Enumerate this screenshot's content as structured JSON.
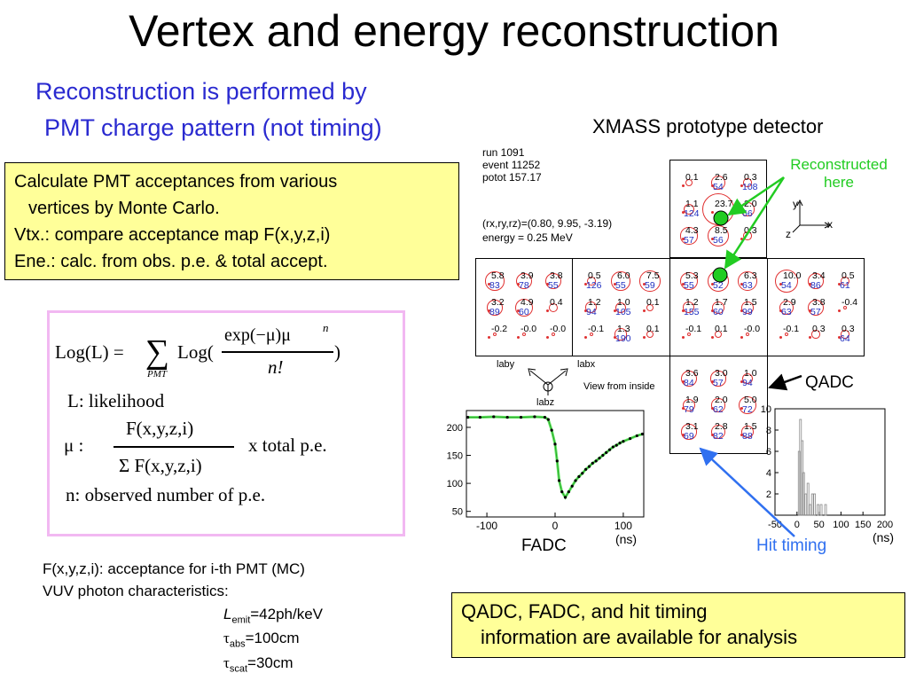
{
  "title": "Vertex and energy reconstruction",
  "subtitle": {
    "line1": "Reconstruction is performed by",
    "line2": "PMT charge pattern (not timing)"
  },
  "calc_box": {
    "lines": [
      "Calculate PMT acceptances from various",
      "vertices by Monte Carlo.",
      "Vtx.: compare acceptance map F(x,y,z,i)",
      "Ene.: calc. from obs. p.e. & total accept."
    ]
  },
  "formula": {
    "lhs": "Log(L) =",
    "sum_sub": "PMT",
    "log_open": "Log(",
    "numerator": "exp(−μ)μ",
    "numerator_sup": "n",
    "denominator": "n!",
    "log_close": ")",
    "l_def": "L: likelihood",
    "mu_label": "μ :",
    "mu_num": "F(x,y,z,i)",
    "mu_den": "Σ F(x,y,z,i)",
    "mu_suffix": "x total p.e.",
    "n_def": "n: observed number of p.e."
  },
  "notes": {
    "line1": "F(x,y,z,i): acceptance for i-th PMT (MC)",
    "line2": "VUV photon characteristics:",
    "lemit_sym": "L",
    "lemit_sub": "emit",
    "lemit_val": "=42ph/keV",
    "tau_abs_sym": "τ",
    "tau_abs_sub": "abs",
    "tau_abs_val": "=100cm",
    "tau_scat_sym": "τ",
    "tau_scat_sub": "scat",
    "tau_scat_val": "=30cm"
  },
  "detector": {
    "heading": "XMASS prototype detector",
    "run_info": [
      "run 1091",
      "event 11252",
      "potot 157.17"
    ],
    "vertex_info": [
      "(rx,ry,rz)=(0.80, 9.95, -3.19)",
      "energy = 0.25 MeV"
    ],
    "axes": {
      "y": "y",
      "x": "x",
      "z": "z"
    },
    "view_labels": {
      "laby": "laby",
      "labx": "labx",
      "labz": "labz",
      "view": "View from inside"
    },
    "faces": {
      "top": [
        [
          "0.1",
          "2.6",
          "0.3"
        ],
        [
          "1.1",
          "23.7",
          "2.0"
        ],
        [
          "4.3",
          "8.5",
          "0.3"
        ]
      ],
      "top_blue": [
        [
          "",
          "54",
          "108"
        ],
        [
          "124",
          "",
          "66"
        ],
        [
          "57",
          "56",
          ""
        ]
      ],
      "left": [
        [
          "5.8",
          "3.9",
          "3.8"
        ],
        [
          "3.2",
          "4.9",
          "0.4"
        ],
        [
          "-0.2",
          "-0.0",
          "-0.0"
        ]
      ],
      "left_blue": [
        [
          "83",
          "78",
          "55"
        ],
        [
          "89",
          "60",
          ""
        ],
        [
          "",
          "",
          ""
        ]
      ],
      "front": [
        [
          "0.5",
          "6.0",
          "7.5"
        ],
        [
          "1.2",
          "1.0",
          "0.1"
        ],
        [
          "-0.1",
          "1.3",
          "0.1"
        ]
      ],
      "front_blue": [
        [
          "126",
          "55",
          "59"
        ],
        [
          "94",
          "105",
          ""
        ],
        [
          "",
          "190",
          ""
        ]
      ],
      "center": [
        [
          "5.3",
          "8.5",
          "6.3"
        ],
        [
          "1.2",
          "1.7",
          "1.5"
        ],
        [
          "-0.1",
          "0.1",
          "-0.0"
        ]
      ],
      "center_blue": [
        [
          "55",
          "52",
          "63"
        ],
        [
          "155",
          "60",
          "99"
        ],
        [
          "",
          "",
          ""
        ]
      ],
      "right": [
        [
          "10.0",
          "3.4",
          "0.5"
        ],
        [
          "2.9",
          "3.8",
          "-0.4"
        ],
        [
          "-0.1",
          "0.3",
          "0.3"
        ]
      ],
      "right_blue": [
        [
          "54",
          "86",
          "61"
        ],
        [
          "63",
          "57",
          ""
        ],
        [
          "",
          "",
          "64"
        ]
      ],
      "bottom": [
        [
          "3.6",
          "3.0",
          "1.0"
        ],
        [
          "1.9",
          "2.0",
          "5.0"
        ],
        [
          "3.1",
          "2.8",
          "1.5"
        ]
      ],
      "bottom_blue": [
        [
          "84",
          "57",
          "94"
        ],
        [
          "79",
          "62",
          "72"
        ],
        [
          "69",
          "82",
          "88"
        ]
      ]
    }
  },
  "annotations": {
    "reconstructed": "Reconstructed",
    "here": "here",
    "qadc": "QADC",
    "fadc": "FADC",
    "hit_timing": "Hit timing"
  },
  "qadc_box": {
    "line1": "QADC, FADC, and hit timing",
    "line2": "information are available for analysis"
  },
  "colors": {
    "title_blue": "#2a2ad0",
    "highlight_yellow": "#ffff99",
    "formula_border": "#f2b8f2",
    "pmt_circle_red": "#e03030",
    "pmt_value_blue": "#2030c0",
    "marker_green": "#22cc22",
    "fadc_line_green": "#33dd33",
    "arrow_green": "#22cc22",
    "arrow_blue": "#3070f0"
  },
  "chart_data": [
    {
      "type": "line",
      "title": "",
      "xlabel": "(ns)",
      "ylabel": "",
      "xlim": [
        -130,
        130
      ],
      "ylim": [
        40,
        230
      ],
      "xticks": [
        "-100",
        "0",
        "100"
      ],
      "yticks": [
        "50",
        "100",
        "150",
        "200"
      ],
      "series": [
        {
          "x": [
            -128,
            -110,
            -90,
            -70,
            -50,
            -30,
            -15,
            -10,
            -5,
            0,
            3,
            6,
            10,
            15,
            20,
            25,
            30,
            35,
            40,
            45,
            50,
            55,
            60,
            65,
            70,
            75,
            80,
            85,
            90,
            95,
            100,
            110,
            120,
            128
          ],
          "values": [
            218,
            218,
            219,
            218,
            218,
            219,
            218,
            214,
            195,
            170,
            140,
            105,
            85,
            75,
            85,
            95,
            105,
            112,
            118,
            125,
            130,
            136,
            140,
            145,
            150,
            155,
            160,
            165,
            168,
            172,
            175,
            180,
            185,
            188
          ]
        }
      ]
    },
    {
      "type": "bar",
      "title": "",
      "xlabel": "(ns)",
      "ylabel": "",
      "xlim": [
        -50,
        200
      ],
      "ylim": [
        0,
        10
      ],
      "xticks": [
        "-50",
        "0",
        "50",
        "100",
        "150",
        "200"
      ],
      "yticks": [
        "2",
        "4",
        "6",
        "8",
        "10"
      ],
      "x": [
        5,
        8,
        12,
        15,
        20,
        25,
        30,
        35,
        40,
        48,
        55,
        65
      ],
      "values": [
        6,
        9,
        7,
        4,
        2,
        3,
        1,
        2,
        2,
        1,
        1,
        1
      ]
    }
  ]
}
